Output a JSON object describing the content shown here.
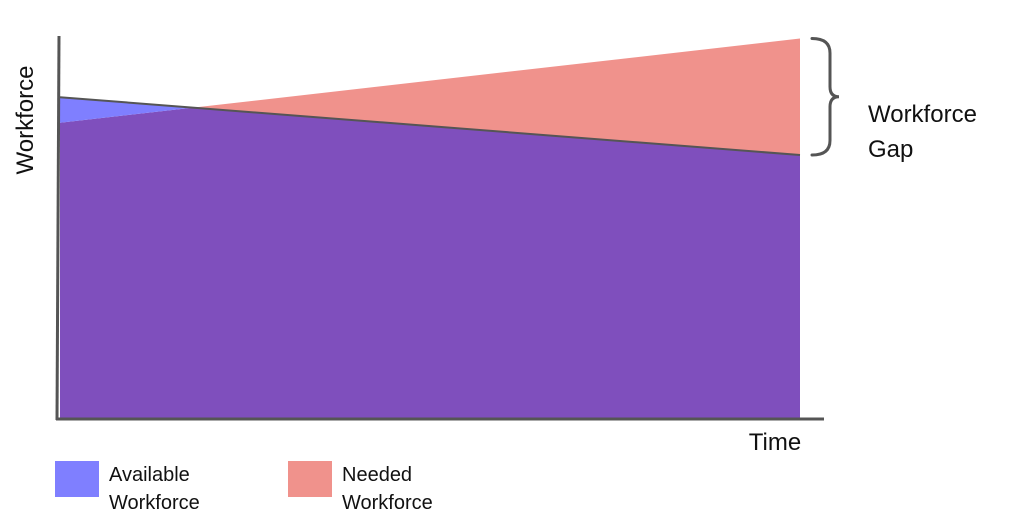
{
  "chart_data": {
    "type": "area",
    "xlabel": "Time",
    "ylabel": "Workforce",
    "x": [
      0,
      1
    ],
    "xlim": [
      0,
      1
    ],
    "ylim": [
      0,
      100
    ],
    "series": [
      {
        "name": "Available Workforce",
        "values": [
          76.8,
          63.0
        ],
        "color": "#7f7fff"
      },
      {
        "name": "Needed Workforce",
        "values": [
          70.7,
          90.8
        ],
        "color": "#f0928c"
      }
    ],
    "overlap_color": "#7f4fbd",
    "legend": [
      {
        "label_line1": "Available",
        "label_line2": "Workforce",
        "color": "#7f7fff"
      },
      {
        "label_line1": "Needed",
        "label_line2": "Workforce",
        "color": "#f0928c"
      }
    ],
    "annotation": {
      "line1": "Workforce",
      "line2": "Gap"
    },
    "legend_position": "bottom",
    "grid": false
  }
}
